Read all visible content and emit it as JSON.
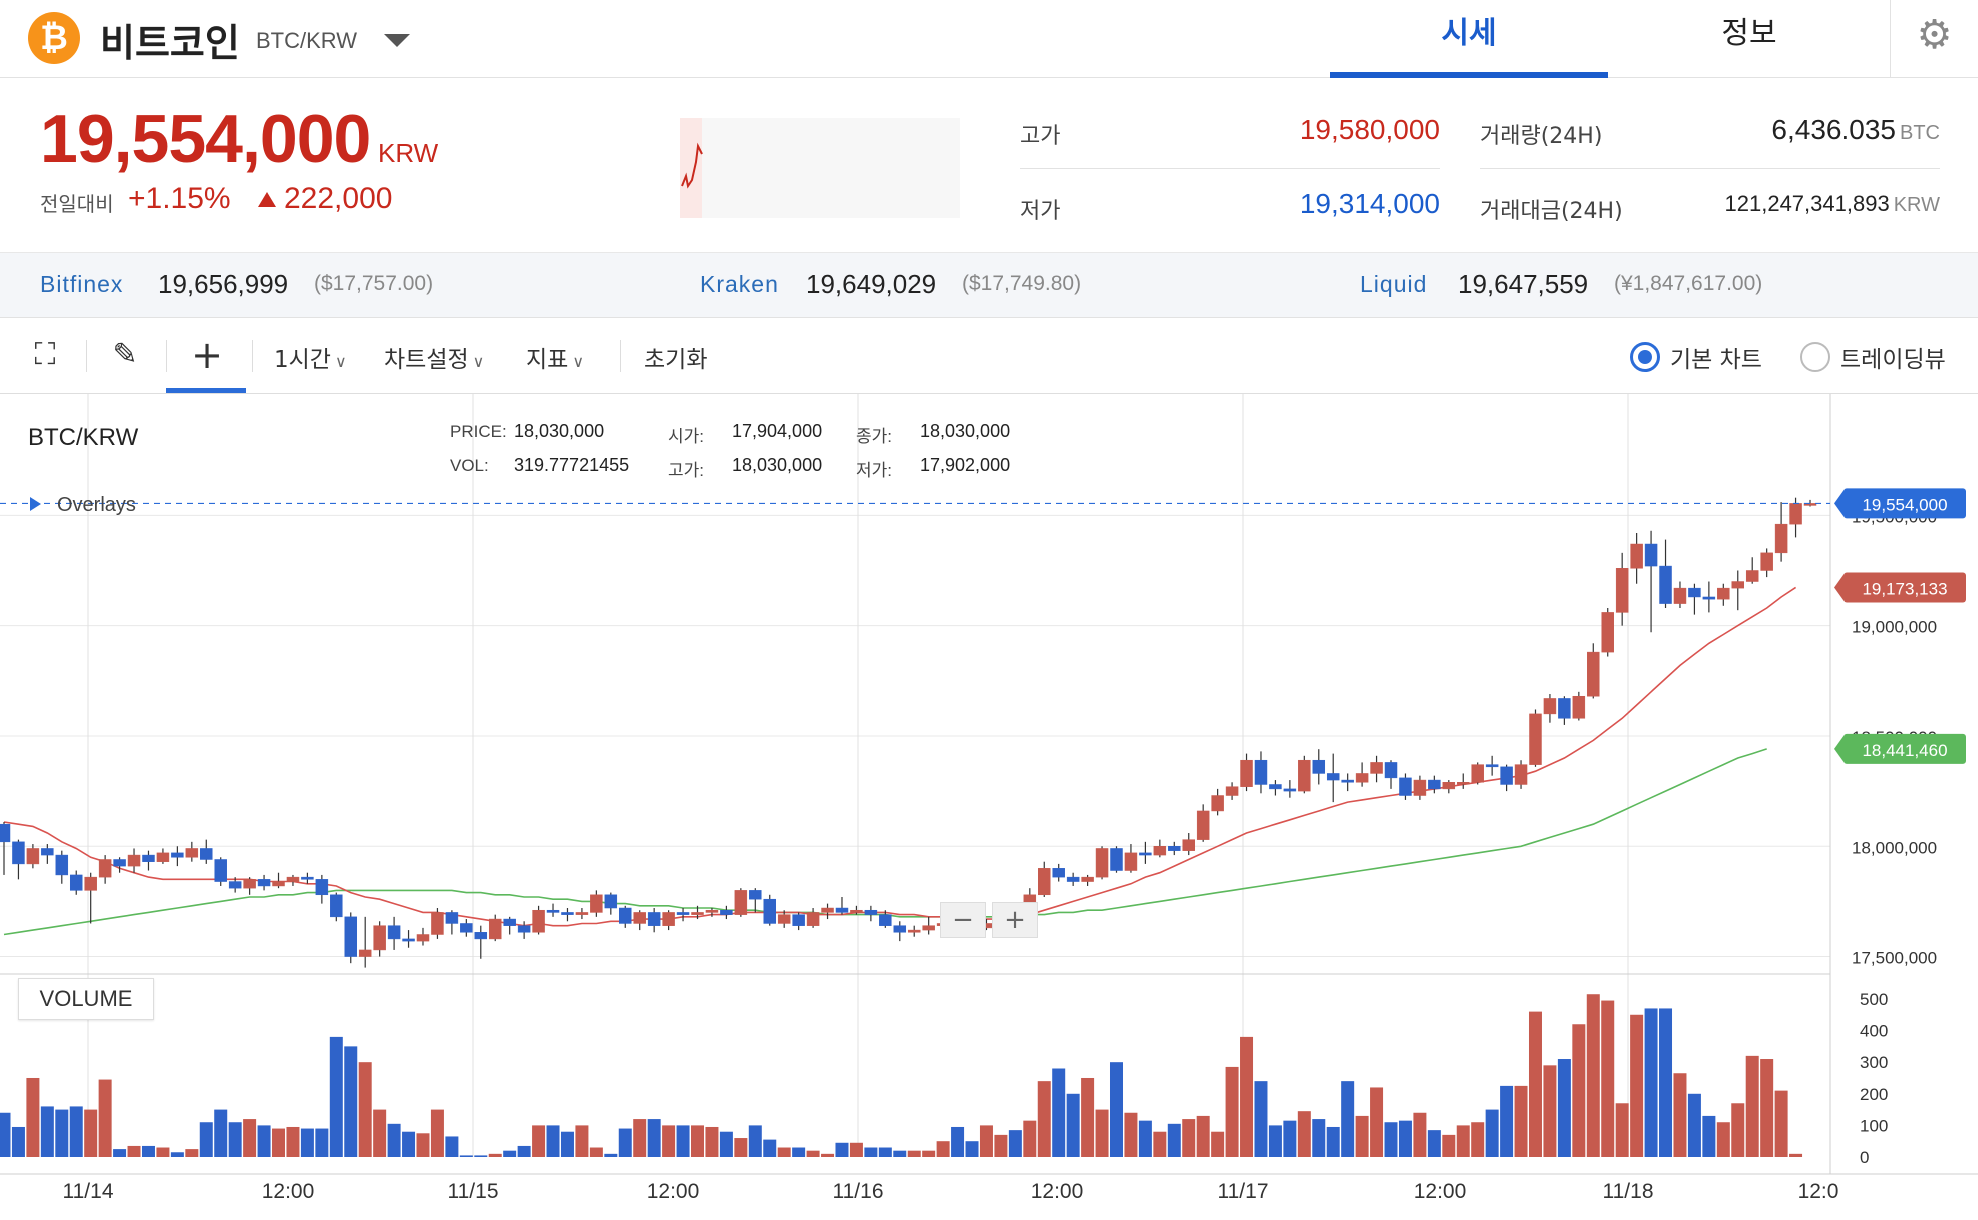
{
  "header": {
    "coin_symbol": "₿",
    "coin_name": "비트코인",
    "pair": "BTC/KRW",
    "tabs": [
      {
        "label": "시세",
        "active": true
      },
      {
        "label": "정보",
        "active": false
      }
    ],
    "settings_icon": "⚙"
  },
  "price": {
    "current": "19,554,000",
    "unit": "KRW",
    "change_label": "전일대비",
    "change_percent": "+1.15%",
    "change_amount": "222,000",
    "color_up": "#c8291d"
  },
  "stats": {
    "high_label": "고가",
    "high": "19,580,000",
    "low_label": "저가",
    "low": "19,314,000",
    "volume_label": "거래량(24H)",
    "volume": "6,436.035",
    "volume_unit": "BTC",
    "amount_label": "거래대금(24H)",
    "amount": "121,247,341,893",
    "amount_unit": "KRW"
  },
  "exchanges": [
    {
      "name": "Bitfinex",
      "price": "19,656,999",
      "foreign": "($17,757.00)"
    },
    {
      "name": "Kraken",
      "price": "19,649,029",
      "foreign": "($17,749.80)"
    },
    {
      "name": "Liquid",
      "price": "19,647,559",
      "foreign": "(¥1,847,617.00)"
    }
  ],
  "toolbar": {
    "fullscreen_icon": "⛶",
    "draw_icon": "✎",
    "crosshair_icon": "+",
    "interval": "1시간",
    "chart_settings": "차트설정",
    "indicators": "지표",
    "reset": "초기화",
    "basic_chart": "기본 차트",
    "tradingview": "트레이딩뷰"
  },
  "chart_info": {
    "pair": "BTC/KRW",
    "overlays": "Overlays",
    "price_label": "PRICE:",
    "price_value": "18,030,000",
    "vol_label": "VOL:",
    "vol_value": "319.77721455",
    "open_label": "시가:",
    "open_value": "17,904,000",
    "high_label": "고가:",
    "high_value": "18,030,000",
    "close_label": "종가:",
    "close_value": "18,030,000",
    "low_label": "저가:",
    "low_value": "17,902,000",
    "volume_tag": "VOLUME",
    "zoom_out": "−",
    "zoom_in": "+"
  },
  "chart_data": {
    "type": "candlestick",
    "title": "BTC/KRW",
    "x_tick_labels": [
      "11/14",
      "12:00",
      "11/15",
      "12:00",
      "11/16",
      "12:00",
      "11/17",
      "12:00",
      "11/18",
      "12:0"
    ],
    "y_ticks": [
      "17,500,000",
      "18,000,000",
      "18,500,000",
      "19,000,000",
      "19,500,000"
    ],
    "ylim": [
      17430000,
      20050000
    ],
    "volume_ticks": [
      "0",
      "100",
      "200",
      "300",
      "400",
      "500"
    ],
    "volume_ylim": [
      0,
      560
    ],
    "price_tags": [
      {
        "label": "19,554,000",
        "value": 19554000,
        "color": "#2b6cd8"
      },
      {
        "label": "19,173,133",
        "value": 19173133,
        "color": "#c65a4e"
      },
      {
        "label": "18,441,460",
        "value": 18441460,
        "color": "#5cb85c"
      }
    ],
    "up_color": "#c65a4e",
    "down_color": "#2f63c9",
    "ma_short_color": "#d9534f",
    "ma_long_color": "#5cb85c",
    "candles": [
      [
        18100000,
        18020000,
        18110000,
        17870000
      ],
      [
        18020000,
        17920000,
        18030000,
        17850000
      ],
      [
        17920000,
        17990000,
        18010000,
        17900000
      ],
      [
        17990000,
        17960000,
        18010000,
        17920000
      ],
      [
        17960000,
        17870000,
        17980000,
        17830000
      ],
      [
        17870000,
        17800000,
        17890000,
        17780000
      ],
      [
        17800000,
        17860000,
        17880000,
        17650000
      ],
      [
        17860000,
        17940000,
        17960000,
        17830000
      ],
      [
        17940000,
        17910000,
        17950000,
        17880000
      ],
      [
        17910000,
        17960000,
        17990000,
        17880000
      ],
      [
        17960000,
        17930000,
        17980000,
        17890000
      ],
      [
        17930000,
        17970000,
        17990000,
        17920000
      ],
      [
        17970000,
        17950000,
        18000000,
        17910000
      ],
      [
        17950000,
        17990000,
        18020000,
        17930000
      ],
      [
        17990000,
        17940000,
        18030000,
        17920000
      ],
      [
        17940000,
        17840000,
        17950000,
        17820000
      ],
      [
        17840000,
        17810000,
        17860000,
        17790000
      ],
      [
        17810000,
        17850000,
        17860000,
        17780000
      ],
      [
        17850000,
        17820000,
        17870000,
        17800000
      ],
      [
        17820000,
        17840000,
        17880000,
        17810000
      ],
      [
        17840000,
        17860000,
        17870000,
        17820000
      ],
      [
        17860000,
        17850000,
        17880000,
        17830000
      ],
      [
        17850000,
        17780000,
        17870000,
        17740000
      ],
      [
        17780000,
        17680000,
        17790000,
        17660000
      ],
      [
        17680000,
        17500000,
        17700000,
        17470000
      ],
      [
        17500000,
        17530000,
        17680000,
        17450000
      ],
      [
        17530000,
        17640000,
        17660000,
        17500000
      ],
      [
        17640000,
        17580000,
        17680000,
        17530000
      ],
      [
        17580000,
        17570000,
        17620000,
        17540000
      ],
      [
        17570000,
        17600000,
        17630000,
        17550000
      ],
      [
        17600000,
        17700000,
        17720000,
        17580000
      ],
      [
        17700000,
        17650000,
        17710000,
        17600000
      ],
      [
        17650000,
        17610000,
        17670000,
        17590000
      ],
      [
        17610000,
        17580000,
        17640000,
        17490000
      ],
      [
        17580000,
        17670000,
        17690000,
        17570000
      ],
      [
        17670000,
        17640000,
        17680000,
        17600000
      ],
      [
        17640000,
        17610000,
        17660000,
        17580000
      ],
      [
        17610000,
        17710000,
        17730000,
        17600000
      ],
      [
        17710000,
        17700000,
        17740000,
        17680000
      ],
      [
        17700000,
        17690000,
        17720000,
        17660000
      ],
      [
        17690000,
        17700000,
        17720000,
        17670000
      ],
      [
        17700000,
        17780000,
        17800000,
        17680000
      ],
      [
        17780000,
        17720000,
        17790000,
        17690000
      ],
      [
        17720000,
        17650000,
        17730000,
        17630000
      ],
      [
        17650000,
        17700000,
        17710000,
        17620000
      ],
      [
        17700000,
        17640000,
        17720000,
        17610000
      ],
      [
        17640000,
        17700000,
        17710000,
        17620000
      ],
      [
        17700000,
        17690000,
        17720000,
        17660000
      ],
      [
        17690000,
        17700000,
        17730000,
        17670000
      ],
      [
        17700000,
        17710000,
        17720000,
        17680000
      ],
      [
        17710000,
        17690000,
        17730000,
        17670000
      ],
      [
        17690000,
        17800000,
        17810000,
        17680000
      ],
      [
        17800000,
        17760000,
        17810000,
        17700000
      ],
      [
        17760000,
        17650000,
        17780000,
        17640000
      ],
      [
        17650000,
        17690000,
        17710000,
        17630000
      ],
      [
        17690000,
        17640000,
        17700000,
        17620000
      ],
      [
        17640000,
        17700000,
        17720000,
        17630000
      ],
      [
        17700000,
        17720000,
        17740000,
        17670000
      ],
      [
        17720000,
        17700000,
        17770000,
        17690000
      ],
      [
        17700000,
        17710000,
        17730000,
        17690000
      ],
      [
        17710000,
        17690000,
        17730000,
        17660000
      ],
      [
        17690000,
        17640000,
        17710000,
        17630000
      ],
      [
        17640000,
        17610000,
        17660000,
        17570000
      ],
      [
        17610000,
        17620000,
        17640000,
        17590000
      ],
      [
        17620000,
        17640000,
        17680000,
        17600000
      ],
      [
        17640000,
        17650000,
        17670000,
        17610000
      ],
      [
        17650000,
        17640000,
        17680000,
        17600000
      ],
      [
        17640000,
        17630000,
        17660000,
        17610000
      ],
      [
        17630000,
        17650000,
        17670000,
        17620000
      ],
      [
        17650000,
        17720000,
        17740000,
        17630000
      ],
      [
        17720000,
        17700000,
        17740000,
        17680000
      ],
      [
        17700000,
        17780000,
        17810000,
        17690000
      ],
      [
        17780000,
        17900000,
        17930000,
        17770000
      ],
      [
        17900000,
        17860000,
        17920000,
        17840000
      ],
      [
        17860000,
        17840000,
        17880000,
        17820000
      ],
      [
        17840000,
        17860000,
        17870000,
        17820000
      ],
      [
        17860000,
        17990000,
        18000000,
        17850000
      ],
      [
        17990000,
        17890000,
        18000000,
        17880000
      ],
      [
        17890000,
        17970000,
        18010000,
        17880000
      ],
      [
        17970000,
        17960000,
        18020000,
        17920000
      ],
      [
        17960000,
        18000000,
        18030000,
        17950000
      ],
      [
        18000000,
        17980000,
        18020000,
        17960000
      ],
      [
        17980000,
        18030000,
        18060000,
        17960000
      ],
      [
        18030000,
        18160000,
        18190000,
        18020000
      ],
      [
        18160000,
        18230000,
        18260000,
        18140000
      ],
      [
        18230000,
        18270000,
        18290000,
        18210000
      ],
      [
        18270000,
        18390000,
        18420000,
        18250000
      ],
      [
        18390000,
        18280000,
        18430000,
        18240000
      ],
      [
        18280000,
        18260000,
        18300000,
        18230000
      ],
      [
        18260000,
        18250000,
        18300000,
        18220000
      ],
      [
        18250000,
        18390000,
        18410000,
        18240000
      ],
      [
        18390000,
        18330000,
        18440000,
        18280000
      ],
      [
        18330000,
        18300000,
        18420000,
        18200000
      ],
      [
        18300000,
        18290000,
        18330000,
        18250000
      ],
      [
        18290000,
        18330000,
        18380000,
        18270000
      ],
      [
        18330000,
        18380000,
        18410000,
        18290000
      ],
      [
        18380000,
        18310000,
        18390000,
        18260000
      ],
      [
        18310000,
        18230000,
        18330000,
        18210000
      ],
      [
        18230000,
        18300000,
        18320000,
        18210000
      ],
      [
        18300000,
        18260000,
        18320000,
        18240000
      ],
      [
        18260000,
        18290000,
        18300000,
        18240000
      ],
      [
        18290000,
        18290000,
        18330000,
        18260000
      ],
      [
        18290000,
        18370000,
        18380000,
        18280000
      ],
      [
        18370000,
        18360000,
        18410000,
        18320000
      ],
      [
        18360000,
        18280000,
        18370000,
        18250000
      ],
      [
        18280000,
        18370000,
        18390000,
        18260000
      ],
      [
        18370000,
        18600000,
        18620000,
        18360000
      ],
      [
        18600000,
        18670000,
        18690000,
        18560000
      ],
      [
        18670000,
        18580000,
        18680000,
        18550000
      ],
      [
        18580000,
        18680000,
        18700000,
        18570000
      ],
      [
        18680000,
        18880000,
        18920000,
        18670000
      ],
      [
        18880000,
        19060000,
        19080000,
        18860000
      ],
      [
        19060000,
        19260000,
        19330000,
        19000000
      ],
      [
        19260000,
        19370000,
        19420000,
        19190000
      ],
      [
        19370000,
        19270000,
        19430000,
        18970000
      ],
      [
        19270000,
        19100000,
        19390000,
        19080000
      ],
      [
        19100000,
        19170000,
        19200000,
        19080000
      ],
      [
        19170000,
        19130000,
        19190000,
        19050000
      ],
      [
        19130000,
        19120000,
        19200000,
        19060000
      ],
      [
        19120000,
        19170000,
        19190000,
        19090000
      ],
      [
        19170000,
        19200000,
        19250000,
        19070000
      ],
      [
        19200000,
        19250000,
        19310000,
        19190000
      ],
      [
        19250000,
        19330000,
        19350000,
        19220000
      ],
      [
        19330000,
        19460000,
        19560000,
        19290000
      ],
      [
        19460000,
        19554000,
        19580000,
        19400000
      ],
      [
        19554000,
        19554000,
        19570000,
        19540000
      ]
    ],
    "volumes": [
      140,
      95,
      250,
      160,
      150,
      160,
      150,
      245,
      25,
      35,
      35,
      30,
      15,
      25,
      110,
      150,
      110,
      120,
      100,
      90,
      95,
      90,
      90,
      380,
      350,
      300,
      150,
      105,
      80,
      75,
      150,
      65,
      5,
      5,
      10,
      20,
      35,
      100,
      100,
      80,
      100,
      30,
      10,
      90,
      120,
      120,
      100,
      100,
      100,
      95,
      80,
      60,
      100,
      55,
      30,
      30,
      20,
      10,
      45,
      45,
      30,
      30,
      20,
      20,
      20,
      50,
      95,
      50,
      100,
      70,
      85,
      115,
      240,
      280,
      200,
      250,
      150,
      300,
      140,
      115,
      80,
      105,
      120,
      130,
      80,
      285,
      380,
      240,
      100,
      115,
      145,
      120,
      95,
      240,
      130,
      220,
      110,
      115,
      140,
      85,
      70,
      100,
      110,
      150,
      225,
      225,
      460,
      290,
      310,
      420,
      515,
      495,
      170,
      450,
      470,
      470,
      265,
      200,
      130,
      110,
      170,
      320,
      310,
      210,
      10
    ],
    "ma_short": [
      18110000,
      18100000,
      18090000,
      18060000,
      18020000,
      17990000,
      17950000,
      17930000,
      17900000,
      17880000,
      17860000,
      17850000,
      17850000,
      17850000,
      17850000,
      17850000,
      17850000,
      17850000,
      17840000,
      17840000,
      17840000,
      17830000,
      17830000,
      17820000,
      17790000,
      17770000,
      17760000,
      17740000,
      17720000,
      17700000,
      17700000,
      17690000,
      17680000,
      17670000,
      17660000,
      17650000,
      17640000,
      17650000,
      17640000,
      17640000,
      17650000,
      17650000,
      17660000,
      17660000,
      17670000,
      17670000,
      17670000,
      17680000,
      17680000,
      17690000,
      17690000,
      17700000,
      17700000,
      17700000,
      17700000,
      17700000,
      17690000,
      17690000,
      17690000,
      17700000,
      17700000,
      17700000,
      17690000,
      17690000,
      17680000,
      17680000,
      17680000,
      17670000,
      17670000,
      17670000,
      17680000,
      17690000,
      17710000,
      17730000,
      17750000,
      17770000,
      17790000,
      17810000,
      17830000,
      17860000,
      17880000,
      17910000,
      17940000,
      17970000,
      18000000,
      18030000,
      18060000,
      18080000,
      18100000,
      18120000,
      18140000,
      18160000,
      18180000,
      18200000,
      18210000,
      18220000,
      18230000,
      18240000,
      18250000,
      18260000,
      18270000,
      18280000,
      18290000,
      18300000,
      18310000,
      18320000,
      18340000,
      18370000,
      18400000,
      18440000,
      18480000,
      18530000,
      18580000,
      18640000,
      18700000,
      18760000,
      18820000,
      18870000,
      18920000,
      18960000,
      19000000,
      19040000,
      19080000,
      19130000,
      19173133
    ],
    "ma_long": [
      17600000,
      17610000,
      17620000,
      17630000,
      17640000,
      17650000,
      17660000,
      17670000,
      17680000,
      17690000,
      17700000,
      17710000,
      17720000,
      17730000,
      17740000,
      17750000,
      17760000,
      17770000,
      17770000,
      17780000,
      17780000,
      17790000,
      17790000,
      17800000,
      17800000,
      17800000,
      17800000,
      17800000,
      17800000,
      17800000,
      17800000,
      17800000,
      17790000,
      17790000,
      17780000,
      17780000,
      17770000,
      17770000,
      17760000,
      17760000,
      17750000,
      17750000,
      17740000,
      17740000,
      17730000,
      17730000,
      17730000,
      17720000,
      17720000,
      17720000,
      17710000,
      17710000,
      17710000,
      17700000,
      17700000,
      17700000,
      17700000,
      17690000,
      17690000,
      17690000,
      17690000,
      17690000,
      17680000,
      17680000,
      17680000,
      17680000,
      17680000,
      17680000,
      17680000,
      17680000,
      17690000,
      17690000,
      17690000,
      17700000,
      17700000,
      17710000,
      17710000,
      17720000,
      17730000,
      17740000,
      17750000,
      17760000,
      17770000,
      17780000,
      17790000,
      17800000,
      17810000,
      17820000,
      17830000,
      17840000,
      17850000,
      17860000,
      17870000,
      17880000,
      17890000,
      17900000,
      17910000,
      17920000,
      17930000,
      17940000,
      17950000,
      17960000,
      17970000,
      17980000,
      17990000,
      18000000,
      18020000,
      18040000,
      18060000,
      18080000,
      18100000,
      18130000,
      18160000,
      18190000,
      18220000,
      18250000,
      18280000,
      18310000,
      18340000,
      18370000,
      18400000,
      18420000,
      18441460
    ]
  }
}
